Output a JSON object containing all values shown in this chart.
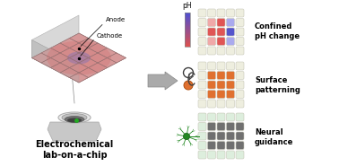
{
  "bg_color": "#ffffff",
  "title_text": "Electrochemical\nlab-on-a-chip",
  "title_fontsize": 7.0,
  "arrow_color": "#909090",
  "label1": "Confined\npH change",
  "label2": "Surface\npatterning",
  "label3": "Neural\nguidance",
  "label_fontsize": 6.0,
  "anode_label": "Anode",
  "cathode_label": "Cathode",
  "ph_label": "pH",
  "W": "#eeeedf",
  "R1": "#f0a8a8",
  "R2": "#e05555",
  "R3": "#cc3333",
  "B1": "#aaaaee",
  "B2": "#5555cc",
  "O1": "#f0b080",
  "O2": "#e07030",
  "D1": "#707070",
  "LG": "#ddeedd",
  "neuron_green": "#228822",
  "chip_pink": "#f0b0b0",
  "chip_red": "#e05555",
  "chip_blue": "#5050cc",
  "chip_line": "#b08080",
  "chip_side_l": "#d8d8d8",
  "chip_side_b": "#c0c0c0",
  "chip_elec": "#cc9090",
  "well_outer": "#d0d0d0",
  "well_rim": "#e0e0e0",
  "well_dark": "#606060",
  "well_base": "#c8c8c8",
  "connect_line": "#888888"
}
